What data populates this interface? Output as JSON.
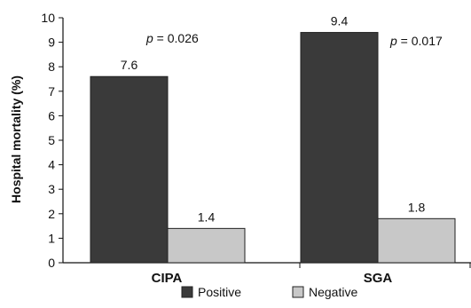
{
  "chart_data": {
    "type": "bar",
    "categories": [
      "CIPA",
      "SGA"
    ],
    "series": [
      {
        "name": "Positive",
        "values": [
          7.6,
          9.4
        ],
        "color": "#3a3a3a"
      },
      {
        "name": "Negative",
        "values": [
          1.4,
          1.8
        ],
        "color": "#c8c8c8"
      }
    ],
    "data_labels": [
      [
        "7.6",
        "9.4"
      ],
      [
        "1.4",
        "1.8"
      ]
    ],
    "ylabel": "Hospital mortality (%)",
    "xlabel": "",
    "ylim": [
      0,
      10
    ],
    "yticks": [
      "0",
      "1",
      "2",
      "3",
      "4",
      "5",
      "6",
      "7",
      "8",
      "9",
      "10"
    ],
    "annotations": [
      {
        "p": "p",
        "rest": " = 0.026"
      },
      {
        "p": "p",
        "rest": " = 0.017"
      }
    ],
    "legend_position": "bottom",
    "grid": false
  }
}
